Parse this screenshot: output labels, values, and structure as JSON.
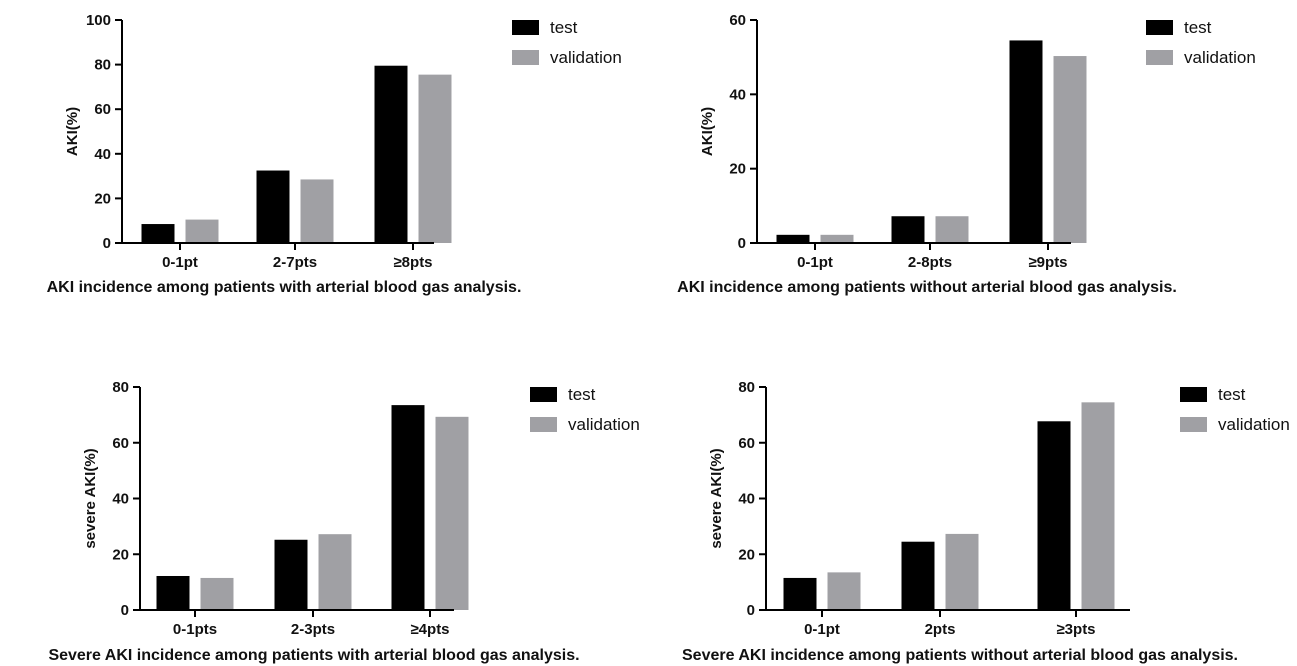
{
  "colors": {
    "test": "#000000",
    "validation": "#a0a0a4",
    "axis": "#000000"
  },
  "chart_data": [
    {
      "type": "bar",
      "title": "",
      "caption": "AKI incidence among patients with arterial blood gas analysis.",
      "ylabel": "AKI(%)",
      "xlabel": "",
      "ylim": [
        0,
        100
      ],
      "yticks": [
        0,
        20,
        40,
        60,
        80,
        100
      ],
      "categories": [
        "0-1pt",
        "2-7pts",
        "≥8pts"
      ],
      "series": [
        {
          "name": "test",
          "values": [
            8.5,
            32.5,
            79.5
          ]
        },
        {
          "name": "validation",
          "values": [
            10.5,
            28.5,
            75.5
          ]
        }
      ],
      "legend": "top-right",
      "grid": false
    },
    {
      "type": "bar",
      "title": "",
      "caption": "AKI incidence among patients without arterial blood gas analysis.",
      "ylabel": "AKI(%)",
      "xlabel": "",
      "ylim": [
        0,
        60
      ],
      "yticks": [
        0,
        20,
        40,
        60
      ],
      "categories": [
        "0-1pt",
        "2-8pts",
        "≥9pts"
      ],
      "series": [
        {
          "name": "test",
          "values": [
            2.2,
            7.2,
            54.5
          ]
        },
        {
          "name": "validation",
          "values": [
            2.2,
            7.2,
            50.3
          ]
        }
      ],
      "legend": "top-right",
      "grid": false
    },
    {
      "type": "bar",
      "title": "",
      "caption": "Severe AKI incidence among patients with arterial blood gas analysis.",
      "ylabel": "severe AKI(%)",
      "xlabel": "",
      "ylim": [
        0,
        80
      ],
      "yticks": [
        0,
        20,
        40,
        60,
        80
      ],
      "categories": [
        "0-1pts",
        "2-3pts",
        "≥4pts"
      ],
      "series": [
        {
          "name": "test",
          "values": [
            12.2,
            25.2,
            73.5
          ]
        },
        {
          "name": "validation",
          "values": [
            11.5,
            27.2,
            69.3
          ]
        }
      ],
      "legend": "top-right",
      "grid": false
    },
    {
      "type": "bar",
      "title": "",
      "caption": "Severe AKI incidence among patients without arterial blood gas analysis.",
      "ylabel": "severe AKI(%)",
      "xlabel": "",
      "ylim": [
        0,
        80
      ],
      "yticks": [
        0,
        20,
        40,
        60,
        80
      ],
      "categories": [
        "0-1pt",
        "2pts",
        "≥3pts"
      ],
      "series": [
        {
          "name": "test",
          "values": [
            11.5,
            24.5,
            67.7
          ]
        },
        {
          "name": "validation",
          "values": [
            13.5,
            27.3,
            74.5
          ]
        }
      ],
      "legend": "top-right",
      "grid": false
    }
  ]
}
